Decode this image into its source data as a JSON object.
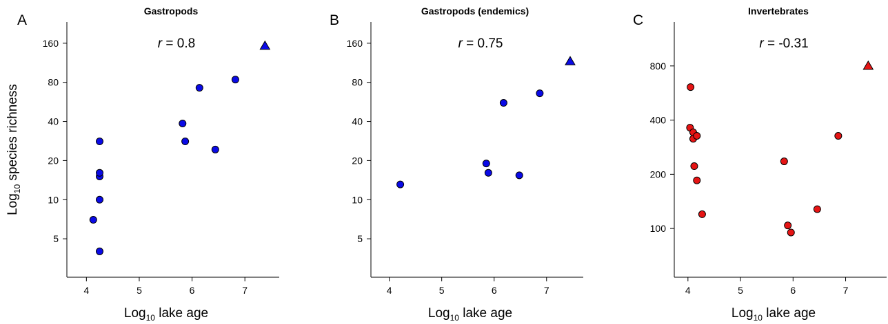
{
  "chart_data": [
    {
      "type": "scatter",
      "panel": "A",
      "title": "Gastropods",
      "annotation": [
        "r",
        " = 0.8"
      ],
      "x_label": [
        "Log",
        "10",
        " lake age"
      ],
      "y_label": [
        "Log",
        "10",
        " species richness"
      ],
      "x": [
        4.13,
        4.25,
        4.25,
        4.25,
        4.25,
        4.25,
        5.82,
        5.87,
        6.14,
        6.44,
        6.82,
        7.38
      ],
      "values": [
        7.0,
        4.0,
        10,
        15.1,
        16.1,
        28.1,
        38.6,
        28.1,
        72.6,
        24.3,
        84,
        152.5
      ],
      "markers": [
        "circle",
        "circle",
        "circle",
        "circle",
        "circle",
        "circle",
        "circle",
        "circle",
        "circle",
        "circle",
        "circle",
        "triangle"
      ],
      "color": "#0a0ae6",
      "xlim": [
        3.63,
        7.65
      ],
      "xticks": [
        4,
        5,
        6,
        7
      ],
      "ylim": [
        2.53,
        233
      ],
      "yticks": [
        5,
        10,
        20,
        40,
        80,
        160
      ],
      "log_y": true
    },
    {
      "type": "scatter",
      "panel": "B",
      "title": "Gastropods (endemics)",
      "annotation": [
        "r",
        " = 0.75"
      ],
      "x_label": [
        "Log",
        "10",
        " lake age"
      ],
      "x": [
        4.21,
        5.85,
        5.89,
        6.18,
        6.48,
        6.87,
        7.45
      ],
      "values": [
        13.1,
        19.0,
        16.1,
        55.6,
        15.4,
        65.9,
        116
      ],
      "markers": [
        "circle",
        "circle",
        "circle",
        "circle",
        "circle",
        "circle",
        "triangle"
      ],
      "color": "#0a0ae6",
      "xlim": [
        3.65,
        7.7
      ],
      "xticks": [
        4,
        5,
        6,
        7
      ],
      "ylim": [
        2.53,
        233
      ],
      "yticks": [
        5,
        10,
        20,
        40,
        80,
        160
      ],
      "log_y": true
    },
    {
      "type": "scatter",
      "panel": "C",
      "title": "Invertebrates",
      "annotation": [
        "r",
        " = -0.31"
      ],
      "x_label": [
        "Log",
        "10",
        " lake age"
      ],
      "x": [
        4.05,
        4.04,
        4.1,
        4.1,
        4.17,
        4.12,
        4.17,
        4.27,
        5.83,
        5.9,
        5.96,
        6.46,
        6.86,
        7.43
      ],
      "values": [
        610,
        363,
        342,
        315,
        327,
        222,
        185,
        120,
        236,
        104,
        95,
        128,
        327,
        800
      ],
      "markers": [
        "circle",
        "circle",
        "circle",
        "circle",
        "circle",
        "circle",
        "circle",
        "circle",
        "circle",
        "circle",
        "circle",
        "circle",
        "circle",
        "triangle"
      ],
      "color": "#e61414",
      "xlim": [
        3.74,
        7.78
      ],
      "xticks": [
        4,
        5,
        6,
        7
      ],
      "ylim": [
        53.6,
        1403
      ],
      "yticks": [
        100,
        200,
        400,
        800
      ],
      "log_y": true
    }
  ]
}
